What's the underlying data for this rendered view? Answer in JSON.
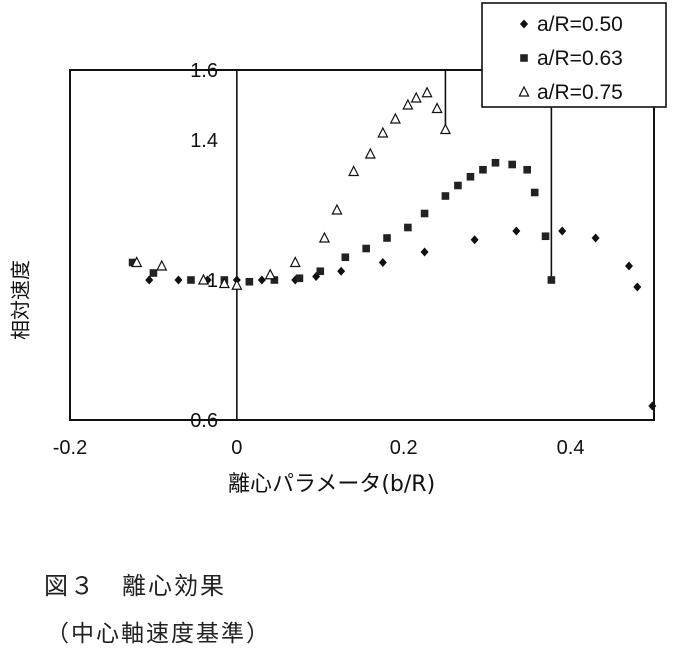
{
  "chart_data": {
    "type": "scatter",
    "xlabel": "離心パラメータ(b/R)",
    "ylabel": "相対速度",
    "xlim": [
      -0.2,
      0.5
    ],
    "ylim": [
      0.6,
      1.6
    ],
    "xticks": [
      {
        "value": -0.2,
        "label": "-0.2"
      },
      {
        "value": 0,
        "label": "0"
      },
      {
        "value": 0.2,
        "label": "0.2"
      },
      {
        "value": 0.4,
        "label": "0.4"
      }
    ],
    "yticks": [
      {
        "value": 0.6,
        "label": "0.6"
      },
      {
        "value": 1.0,
        "label": "1"
      },
      {
        "value": 1.4,
        "label": "1.4"
      },
      {
        "value": 1.6,
        "label": "1.6"
      }
    ],
    "vlines": [
      {
        "x": 0,
        "y0": 0.6,
        "y1": 1.6
      },
      {
        "x": 0.25,
        "y0": 1.42,
        "y1": 1.6
      },
      {
        "x": 0.377,
        "y0": 1.0,
        "y1": 1.6
      }
    ],
    "legend_position": "top-right",
    "series": [
      {
        "name": "a/R=0.50",
        "marker": "diamond",
        "points": [
          [
            -0.105,
            1.0
          ],
          [
            -0.07,
            1.0
          ],
          [
            -0.035,
            1.0
          ],
          [
            0.0,
            1.0
          ],
          [
            0.03,
            1.0
          ],
          [
            0.07,
            1.0
          ],
          [
            0.095,
            1.01
          ],
          [
            0.125,
            1.025
          ],
          [
            0.175,
            1.05
          ],
          [
            0.225,
            1.08
          ],
          [
            0.285,
            1.115
          ],
          [
            0.335,
            1.14
          ],
          [
            0.39,
            1.14
          ],
          [
            0.43,
            1.12
          ],
          [
            0.47,
            1.04
          ],
          [
            0.48,
            0.98
          ],
          [
            0.498,
            0.64
          ]
        ]
      },
      {
        "name": "a/R=0.63",
        "marker": "square",
        "points": [
          [
            -0.125,
            1.05
          ],
          [
            -0.1,
            1.02
          ],
          [
            -0.055,
            1.0
          ],
          [
            -0.015,
            1.0
          ],
          [
            0.015,
            0.995
          ],
          [
            0.045,
            1.0
          ],
          [
            0.075,
            1.005
          ],
          [
            0.1,
            1.025
          ],
          [
            0.13,
            1.065
          ],
          [
            0.155,
            1.09
          ],
          [
            0.18,
            1.12
          ],
          [
            0.205,
            1.15
          ],
          [
            0.225,
            1.19
          ],
          [
            0.25,
            1.24
          ],
          [
            0.265,
            1.27
          ],
          [
            0.28,
            1.295
          ],
          [
            0.295,
            1.315
          ],
          [
            0.31,
            1.335
          ],
          [
            0.33,
            1.33
          ],
          [
            0.348,
            1.315
          ],
          [
            0.357,
            1.25
          ],
          [
            0.37,
            1.125
          ],
          [
            0.377,
            1.0
          ]
        ]
      },
      {
        "name": "a/R=0.75",
        "marker": "triangle",
        "points": [
          [
            -0.12,
            1.05
          ],
          [
            -0.09,
            1.04
          ],
          [
            -0.04,
            1.0
          ],
          [
            -0.015,
            0.99
          ],
          [
            0.0,
            0.985
          ],
          [
            0.04,
            1.015
          ],
          [
            0.07,
            1.05
          ],
          [
            0.105,
            1.12
          ],
          [
            0.12,
            1.2
          ],
          [
            0.14,
            1.31
          ],
          [
            0.16,
            1.36
          ],
          [
            0.175,
            1.42
          ],
          [
            0.19,
            1.46
          ],
          [
            0.205,
            1.5
          ],
          [
            0.215,
            1.52
          ],
          [
            0.228,
            1.535
          ],
          [
            0.24,
            1.49
          ],
          [
            0.25,
            1.43
          ]
        ]
      }
    ]
  },
  "caption": {
    "title": "図３　離心効果",
    "subtitle": "（中心軸速度基準）"
  }
}
